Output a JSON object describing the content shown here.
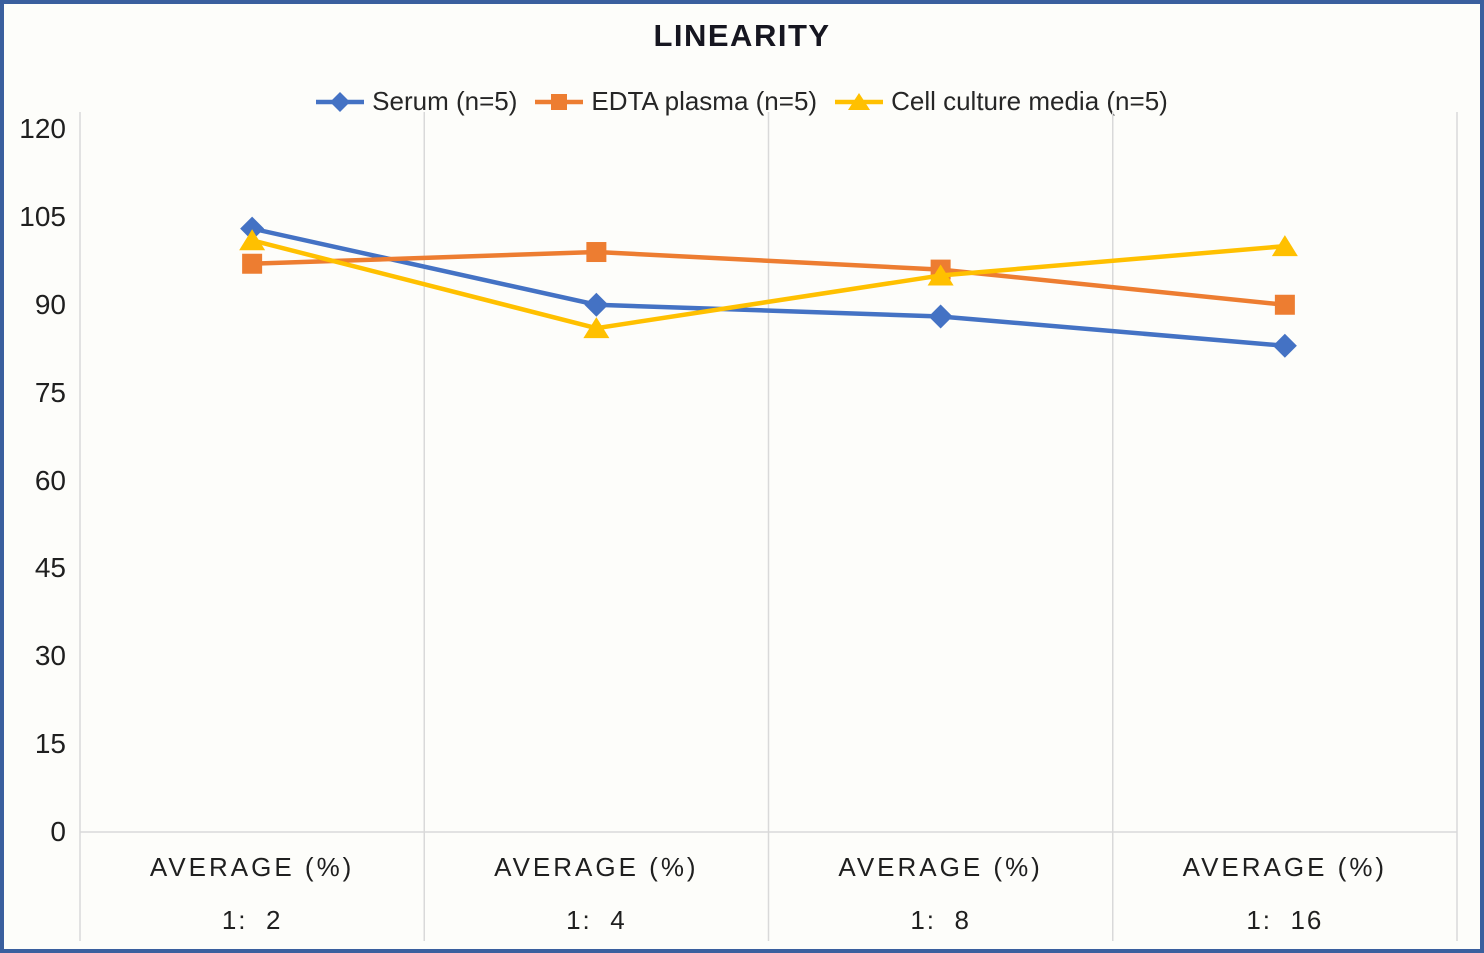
{
  "chart_data": {
    "type": "line",
    "title": "LINEARITY",
    "categories": [
      "1:  2",
      "1:  4",
      "1:  8",
      "1:  16"
    ],
    "category_group_label": "AVERAGE (%)",
    "y_ticks": [
      0,
      15,
      30,
      45,
      60,
      75,
      90,
      105,
      120
    ],
    "ylim": [
      0,
      120
    ],
    "xlabel": "",
    "ylabel": "",
    "grid": "vertical-category-separators-only",
    "legend_position": "top-center",
    "series": [
      {
        "name": "Serum (n=5)",
        "marker": "diamond",
        "color": "#4472C4",
        "values": [
          103,
          90,
          88,
          83
        ]
      },
      {
        "name": "EDTA plasma (n=5)",
        "marker": "square",
        "color": "#ED7D31",
        "values": [
          97,
          99,
          96,
          90
        ]
      },
      {
        "name": "Cell culture media (n=5)",
        "marker": "triangle",
        "color": "#FFC000",
        "values": [
          101,
          86,
          95,
          100
        ]
      }
    ]
  },
  "colors": {
    "frame_border": "#3A5F9E",
    "gridline": "#D9D9D9",
    "background": "#FDFDFA",
    "text": "#1F1F1F",
    "title_text": "#161620"
  }
}
